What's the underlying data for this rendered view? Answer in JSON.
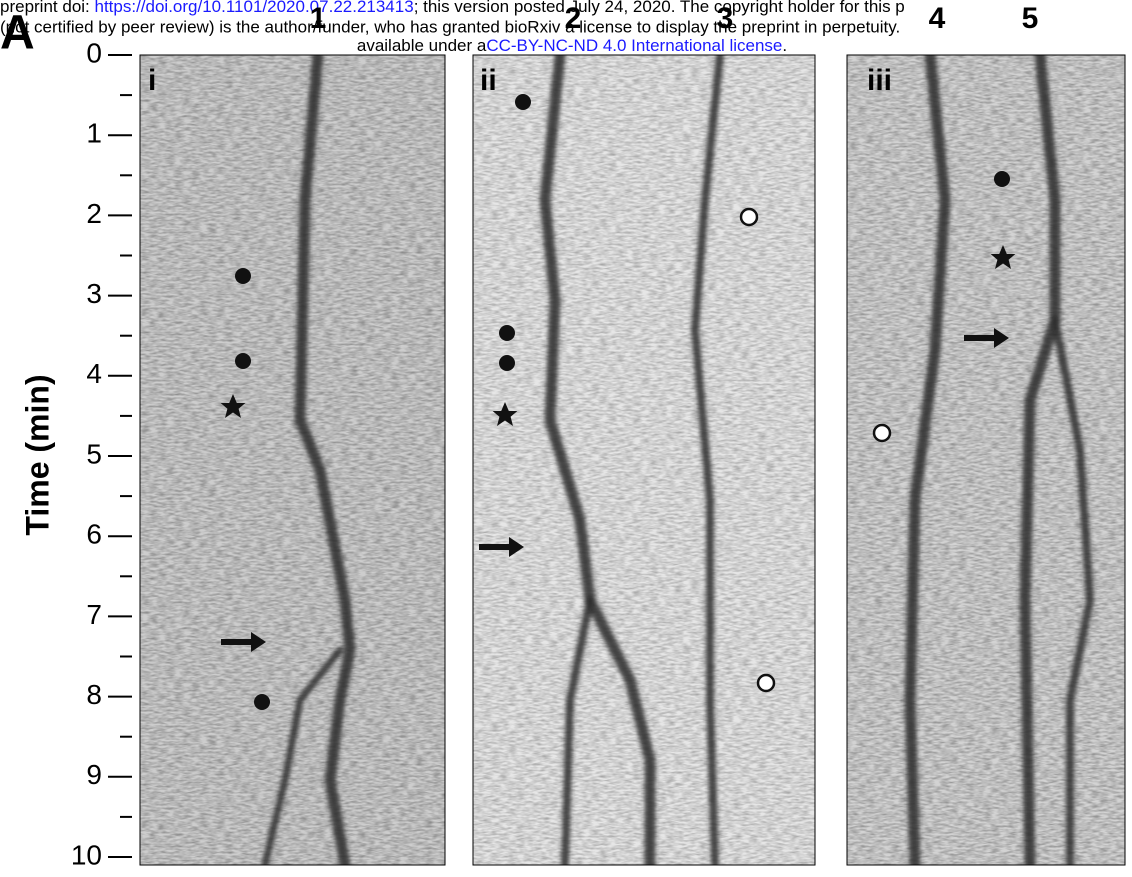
{
  "header": {
    "line1_prefix": "preprint doi: ",
    "doi_link": "https://doi.org/10.1101/2020.07.22.213413",
    "line1_suffix": "; this version posted July 24, 2020. The copyright holder for this p",
    "line2": "(not certified by peer review) is the author/funder, who has granted bioRxiv a license to display the preprint in perpetuity.",
    "line3_prefix": "available under a",
    "license_link": "CC-BY-NC-ND 4.0 International license",
    "line3_suffix": "."
  },
  "figure": {
    "panel_letter": "A",
    "axis_label": "Time (min)",
    "ticks": [
      0,
      1,
      2,
      3,
      4,
      5,
      6,
      7,
      8,
      9,
      10
    ],
    "panels": [
      "i",
      "ii",
      "iii"
    ],
    "track_labels": [
      "1",
      "2",
      "3",
      "4",
      "5"
    ]
  }
}
